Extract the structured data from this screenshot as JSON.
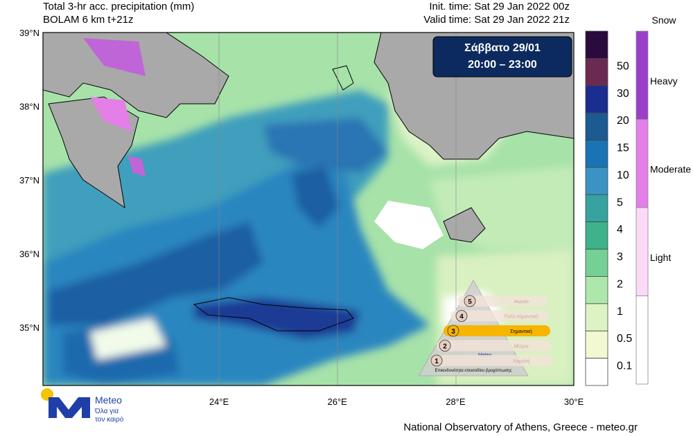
{
  "header": {
    "title": "Total 3-hr acc. precipitation (mm)",
    "model": "BOLAM 6 km t+21z",
    "init_time": "Init. time: Sat 29 Jan 2022 00z",
    "valid_time": "Valid time: Sat 29 Jan 2022 21z"
  },
  "period_box": {
    "day": "Σάββατο 29/01",
    "hours": "20:00 – 23:00"
  },
  "map": {
    "lat_labels": [
      "39°N",
      "38°N",
      "37°N",
      "36°N",
      "35°N"
    ],
    "lon_labels": [
      "24°E",
      "26°E",
      "28°E",
      "30°E"
    ]
  },
  "colorbar": {
    "labels": [
      "50",
      "30",
      "20",
      "15",
      "10",
      "5",
      "4",
      "3",
      "2",
      "1",
      "0.5",
      "0.1"
    ]
  },
  "snow_bar": {
    "title": "Snow",
    "levels": [
      "Heavy",
      "Moderate",
      "Light"
    ]
  },
  "risk_legend": {
    "levels": [
      {
        "number": "5",
        "label": "Ακραίο"
      },
      {
        "number": "4",
        "label": "Πολύ σημαντική"
      },
      {
        "number": "3",
        "label": "Σημαντική"
      },
      {
        "number": "2",
        "label": "Μέτρια"
      },
      {
        "number": "1",
        "label": "Χαμηλή"
      }
    ],
    "logo": "Meteo",
    "caption": "Επικινδυνότητα επεισοδίου βροχόπτωσης"
  },
  "logo": {
    "name": "Meteo",
    "tagline_1": "Όλα για",
    "tagline_2": "τον καιρό"
  },
  "footer": "National Observatory of Athens, Greece - meteo.gr"
}
